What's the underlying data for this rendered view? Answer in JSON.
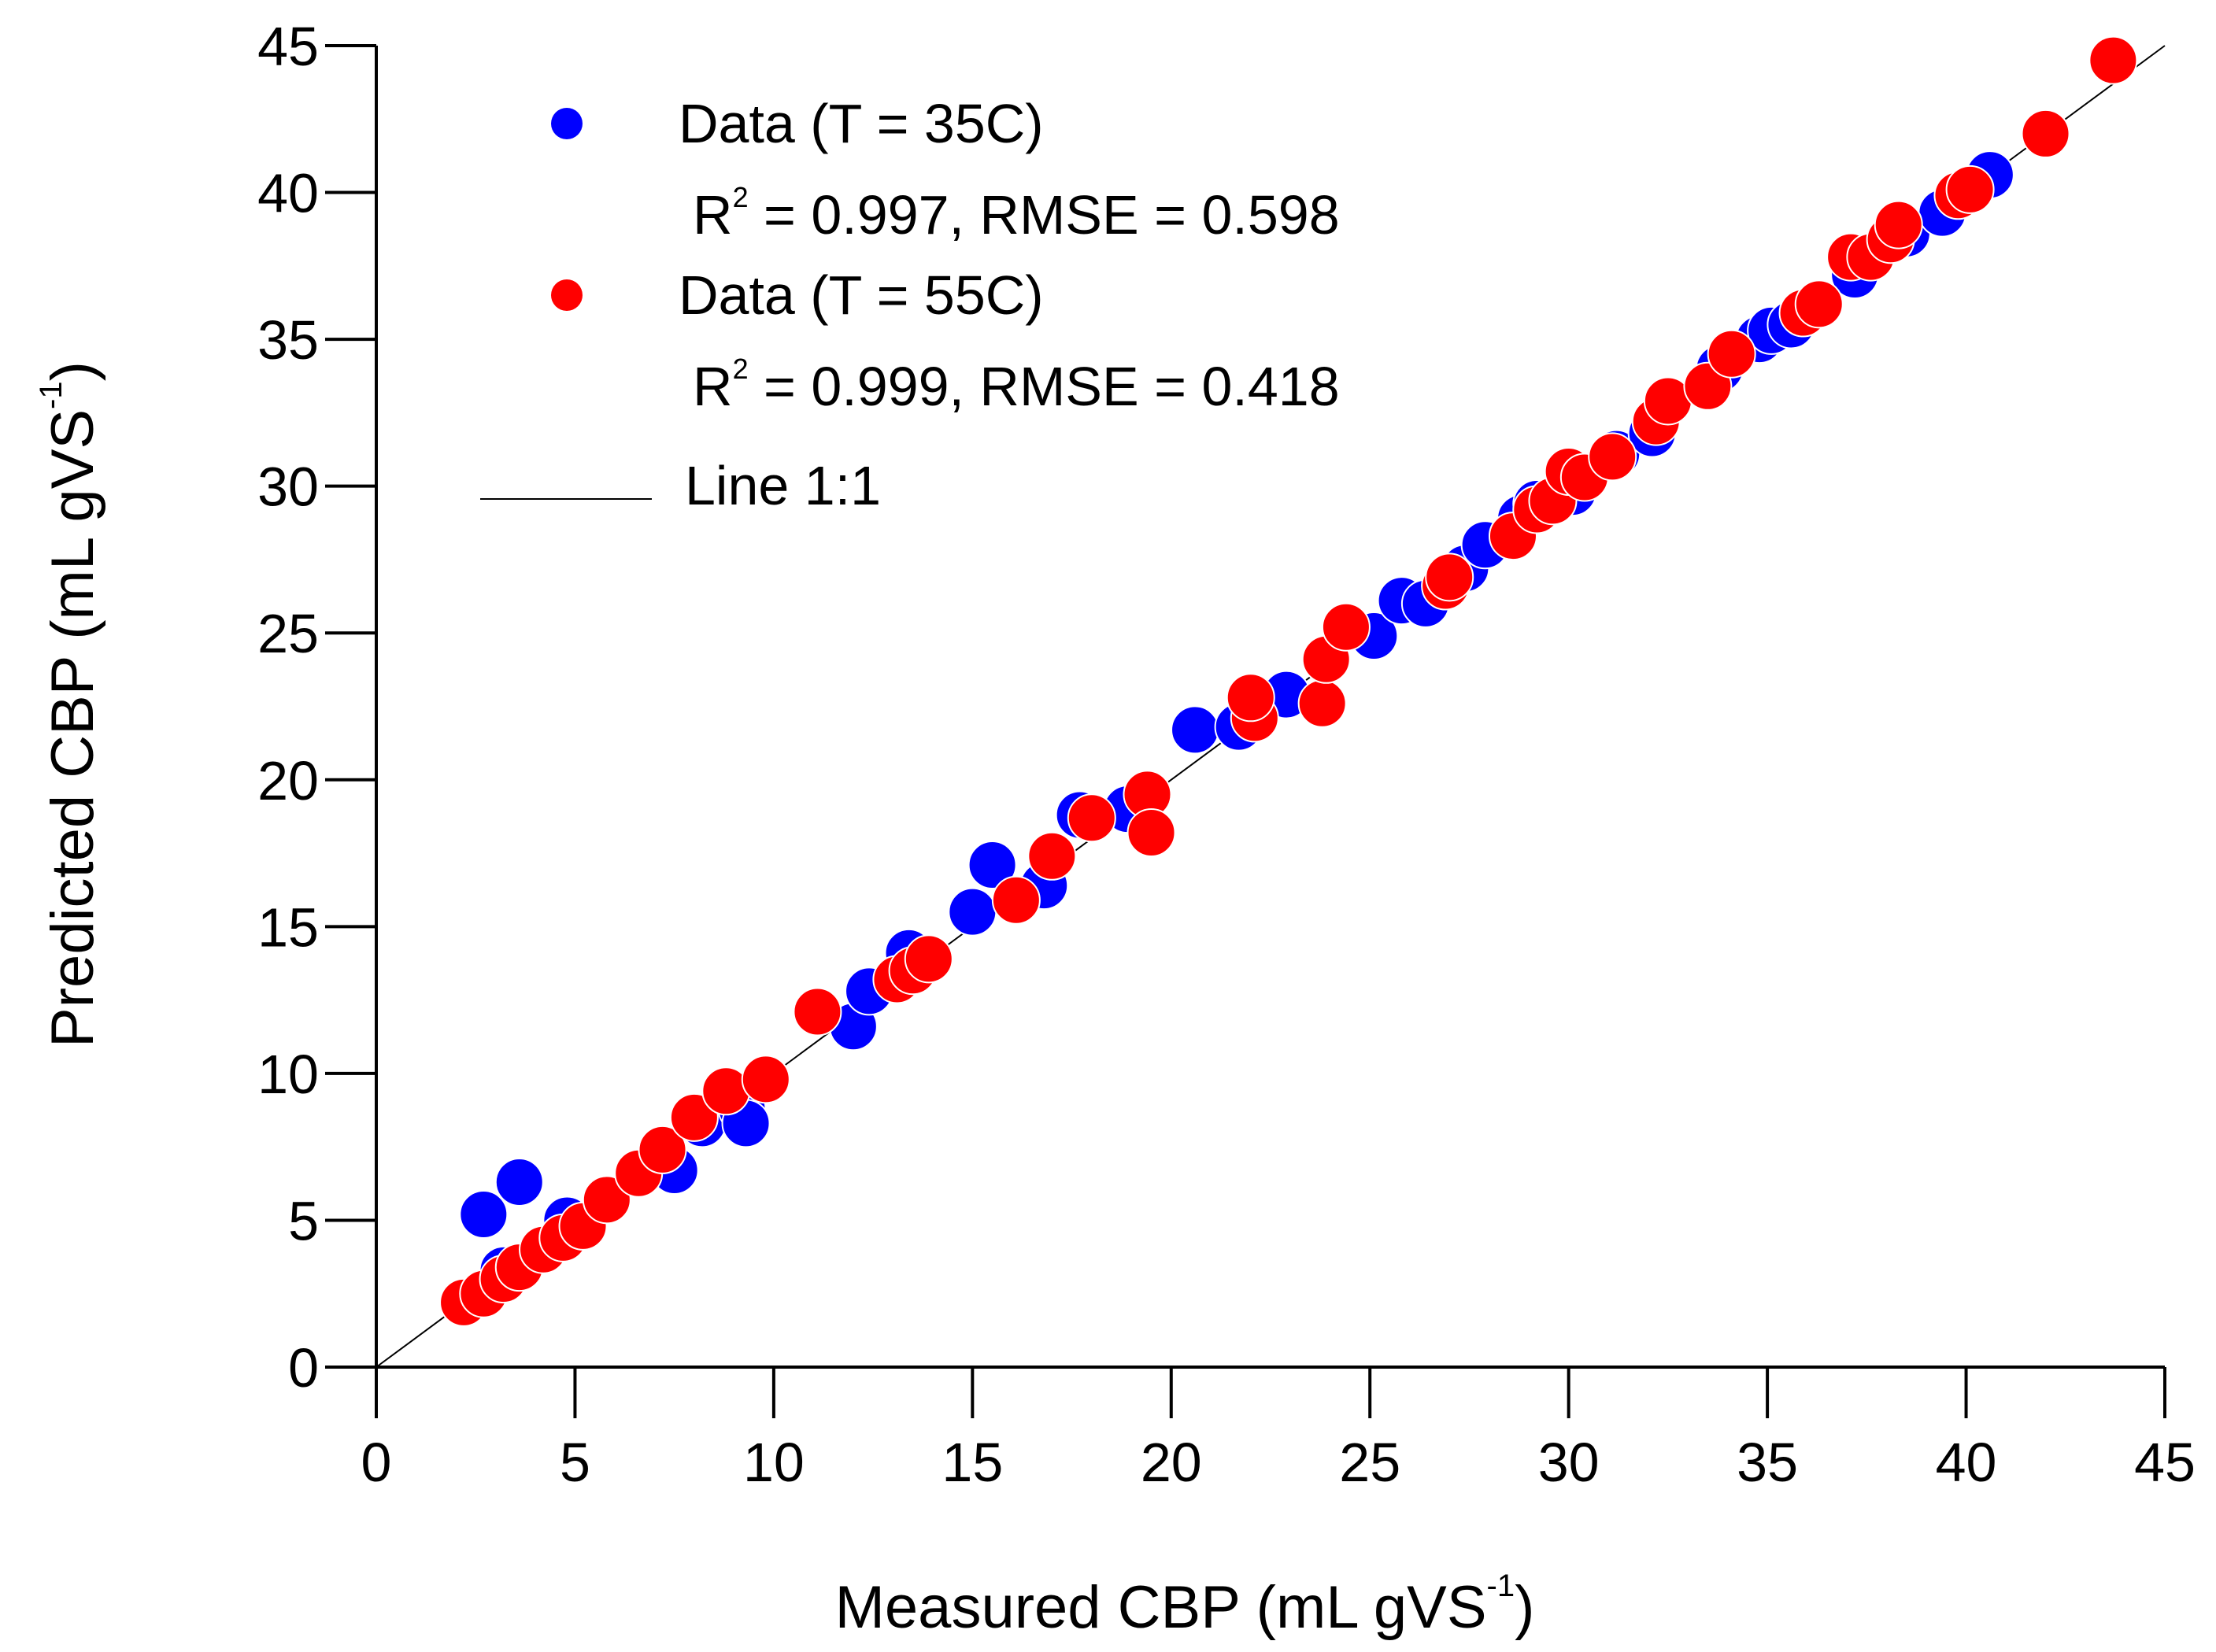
{
  "chart_data": {
    "type": "scatter",
    "xlabel": "Measured CBP (mL gVS",
    "xlabel_sup": "-1",
    "xlabel_close": ")",
    "ylabel": "Predicted CBP (mL gVS",
    "ylabel_sup": "-1",
    "ylabel_close": ")",
    "xlim": [
      0,
      45
    ],
    "ylim": [
      0,
      45
    ],
    "xticks": [
      "0",
      "5",
      "10",
      "15",
      "20",
      "25",
      "30",
      "35",
      "40",
      "45"
    ],
    "yticks": [
      "0",
      "5",
      "10",
      "15",
      "20",
      "25",
      "30",
      "35",
      "40",
      "45"
    ],
    "grid": false,
    "legend_placement": "top-left",
    "identity_line": {
      "from": [
        0,
        0
      ],
      "to": [
        45,
        45
      ],
      "color": "#000000"
    },
    "legend": [
      {
        "label": "Data (T = 35C)",
        "stat_prefix": "R",
        "stat_sup": "2",
        "stat_rest": " = 0.997, RMSE = 0.598"
      },
      {
        "label": "Data (T = 55C)",
        "stat_prefix": "R",
        "stat_sup": "2",
        "stat_rest": " = 0.999, RMSE = 0.418"
      },
      {
        "label": "Line 1:1"
      }
    ],
    "series": [
      {
        "color": "#0000ff",
        "points": [
          [
            2.7,
            5.2
          ],
          [
            3.6,
            6.3
          ],
          [
            3.2,
            3.3
          ],
          [
            4.8,
            5.0
          ],
          [
            7.5,
            6.7
          ],
          [
            8.2,
            8.3
          ],
          [
            9.2,
            8.8
          ],
          [
            9.3,
            8.3
          ],
          [
            12.0,
            11.6
          ],
          [
            12.4,
            12.8
          ],
          [
            13.4,
            14.1
          ],
          [
            15.0,
            15.5
          ],
          [
            15.5,
            17.1
          ],
          [
            16.8,
            16.4
          ],
          [
            17.7,
            18.8
          ],
          [
            18.9,
            19.0
          ],
          [
            20.6,
            21.7
          ],
          [
            21.7,
            21.8
          ],
          [
            22.9,
            22.9
          ],
          [
            25.1,
            24.9
          ],
          [
            25.8,
            26.1
          ],
          [
            26.4,
            26.0
          ],
          [
            27.4,
            27.2
          ],
          [
            27.9,
            28.0
          ],
          [
            28.8,
            28.9
          ],
          [
            29.2,
            29.4
          ],
          [
            30.1,
            29.8
          ],
          [
            31.2,
            31.1
          ],
          [
            32.1,
            31.8
          ],
          [
            33.8,
            34.0
          ],
          [
            34.8,
            35.0
          ],
          [
            35.1,
            35.3
          ],
          [
            35.6,
            35.5
          ],
          [
            37.2,
            37.2
          ],
          [
            38.5,
            38.6
          ],
          [
            39.4,
            39.3
          ],
          [
            40.6,
            40.6
          ]
        ]
      },
      {
        "color": "#ff0000",
        "points": [
          [
            2.2,
            2.2
          ],
          [
            2.7,
            2.5
          ],
          [
            3.2,
            3.0
          ],
          [
            3.6,
            3.4
          ],
          [
            4.2,
            4.0
          ],
          [
            4.7,
            4.4
          ],
          [
            5.2,
            4.8
          ],
          [
            5.8,
            5.7
          ],
          [
            6.6,
            6.6
          ],
          [
            7.2,
            7.4
          ],
          [
            8.0,
            8.5
          ],
          [
            8.8,
            9.4
          ],
          [
            9.8,
            9.8
          ],
          [
            11.1,
            12.1
          ],
          [
            13.1,
            13.2
          ],
          [
            13.5,
            13.5
          ],
          [
            13.9,
            13.9
          ],
          [
            16.1,
            15.9
          ],
          [
            17.0,
            17.4
          ],
          [
            18.0,
            18.7
          ],
          [
            19.4,
            19.5
          ],
          [
            19.5,
            18.2
          ],
          [
            22.1,
            22.1
          ],
          [
            22.0,
            22.8
          ],
          [
            23.8,
            22.6
          ],
          [
            23.9,
            24.1
          ],
          [
            24.4,
            25.2
          ],
          [
            26.9,
            26.6
          ],
          [
            27.0,
            26.9
          ],
          [
            28.6,
            28.3
          ],
          [
            29.2,
            29.2
          ],
          [
            29.6,
            29.5
          ],
          [
            30.0,
            30.5
          ],
          [
            30.4,
            30.3
          ],
          [
            31.1,
            31.0
          ],
          [
            32.2,
            32.2
          ],
          [
            32.5,
            32.9
          ],
          [
            33.5,
            33.4
          ],
          [
            34.1,
            34.5
          ],
          [
            35.9,
            35.9
          ],
          [
            36.3,
            36.2
          ],
          [
            37.1,
            37.8
          ],
          [
            37.6,
            37.8
          ],
          [
            38.1,
            38.4
          ],
          [
            38.3,
            38.9
          ],
          [
            39.8,
            39.9
          ],
          [
            40.1,
            40.1
          ],
          [
            42.0,
            42.0
          ],
          [
            43.7,
            44.5
          ]
        ]
      }
    ]
  }
}
